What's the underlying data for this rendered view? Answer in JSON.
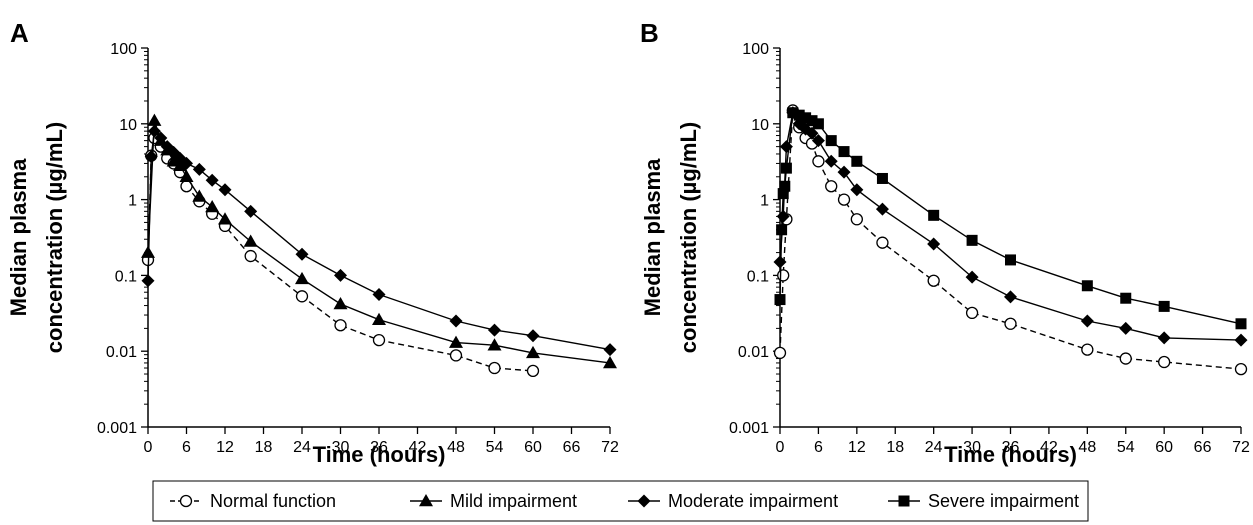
{
  "chart_data": [
    {
      "type": "line",
      "panel_label": "A",
      "xlabel": "Time (hours)",
      "ylabel": [
        "Median plasma",
        "concentration (µg/mL)"
      ],
      "xlim": [
        0,
        72
      ],
      "ylim": [
        0.001,
        100
      ],
      "yscale": "log",
      "x_ticks": [
        "0",
        "6",
        "12",
        "18",
        "24",
        "30",
        "36",
        "42",
        "48",
        "54",
        "60",
        "66",
        "72"
      ],
      "y_ticks": [
        "0.001",
        "0.01",
        "0.1",
        "1",
        "10",
        "100"
      ],
      "series": [
        {
          "name": "Normal function",
          "marker": "open-circle",
          "dash": true,
          "x": [
            0,
            0.5,
            1,
            2,
            3,
            4,
            5,
            6,
            8,
            10,
            12,
            16,
            24,
            30,
            36,
            48,
            54,
            60
          ],
          "y": [
            0.16,
            3.8,
            6.5,
            5.0,
            3.5,
            3.0,
            2.3,
            1.5,
            0.95,
            0.65,
            0.45,
            0.18,
            0.053,
            0.022,
            0.014,
            0.0088,
            0.006,
            0.0055
          ]
        },
        {
          "name": "Mild impairment",
          "marker": "filled-triangle",
          "dash": false,
          "x": [
            0,
            1,
            2,
            3,
            4,
            5,
            6,
            8,
            10,
            12,
            16,
            24,
            30,
            36,
            48,
            54,
            60,
            72
          ],
          "y": [
            0.2,
            11,
            6.0,
            4.5,
            3.2,
            2.8,
            2.0,
            1.1,
            0.8,
            0.55,
            0.28,
            0.09,
            0.042,
            0.026,
            0.013,
            0.012,
            0.0095,
            0.007
          ]
        },
        {
          "name": "Moderate impairment",
          "marker": "filled-diamond",
          "dash": false,
          "x": [
            0,
            0.5,
            1,
            2,
            3,
            4,
            5,
            6,
            8,
            10,
            12,
            16,
            24,
            30,
            36,
            48,
            54,
            60,
            72
          ],
          "y": [
            0.085,
            3.7,
            8.0,
            6.5,
            5.0,
            4.2,
            3.5,
            3.0,
            2.5,
            1.8,
            1.35,
            0.7,
            0.19,
            0.1,
            0.056,
            0.025,
            0.019,
            0.016,
            0.0105
          ]
        }
      ]
    },
    {
      "type": "line",
      "panel_label": "B",
      "xlabel": "Time (hours)",
      "ylabel": [
        "Median plasma",
        "concentration (µg/mL)"
      ],
      "xlim": [
        0,
        72
      ],
      "ylim": [
        0.001,
        100
      ],
      "yscale": "log",
      "x_ticks": [
        "0",
        "6",
        "12",
        "18",
        "24",
        "30",
        "36",
        "42",
        "48",
        "54",
        "60",
        "66",
        "72"
      ],
      "y_ticks": [
        "0.001",
        "0.01",
        "0.1",
        "1",
        "10",
        "100"
      ],
      "series": [
        {
          "name": "Normal function",
          "marker": "open-circle",
          "dash": true,
          "x": [
            0,
            0.5,
            1,
            2,
            3,
            4,
            5,
            6,
            8,
            10,
            12,
            16,
            24,
            30,
            36,
            48,
            54,
            60,
            72
          ],
          "y": [
            0.0095,
            0.1,
            0.55,
            15,
            9.0,
            6.5,
            5.5,
            3.2,
            1.5,
            1.0,
            0.55,
            0.27,
            0.085,
            0.032,
            0.023,
            0.0105,
            0.008,
            0.0072,
            0.0058
          ]
        },
        {
          "name": "Moderate impairment",
          "marker": "filled-diamond",
          "dash": false,
          "x": [
            0,
            0.5,
            1,
            2,
            3,
            4,
            5,
            6,
            8,
            10,
            12,
            16,
            24,
            30,
            36,
            48,
            54,
            60,
            72
          ],
          "y": [
            0.15,
            0.6,
            5.0,
            14,
            10,
            8.5,
            7.5,
            6.0,
            3.2,
            2.3,
            1.35,
            0.75,
            0.26,
            0.095,
            0.052,
            0.025,
            0.02,
            0.015,
            0.014
          ]
        },
        {
          "name": "Severe impairment",
          "marker": "filled-square",
          "dash": false,
          "x": [
            0,
            0.25,
            0.5,
            0.75,
            1,
            2,
            3,
            4,
            5,
            6,
            8,
            10,
            12,
            16,
            24,
            30,
            36,
            48,
            54,
            60,
            72
          ],
          "y": [
            0.048,
            0.4,
            1.2,
            1.5,
            2.6,
            14,
            13,
            12,
            11,
            10,
            6.0,
            4.3,
            3.2,
            1.9,
            0.62,
            0.29,
            0.16,
            0.073,
            0.05,
            0.039,
            0.023
          ]
        }
      ]
    }
  ],
  "legend": {
    "placement": "bottom-center",
    "items": [
      {
        "label": "Normal function",
        "marker": "open-circle",
        "dash": true
      },
      {
        "label": "Mild impairment",
        "marker": "filled-triangle",
        "dash": false
      },
      {
        "label": "Moderate impairment",
        "marker": "filled-diamond",
        "dash": false
      },
      {
        "label": "Severe impairment",
        "marker": "filled-square",
        "dash": false
      }
    ]
  }
}
